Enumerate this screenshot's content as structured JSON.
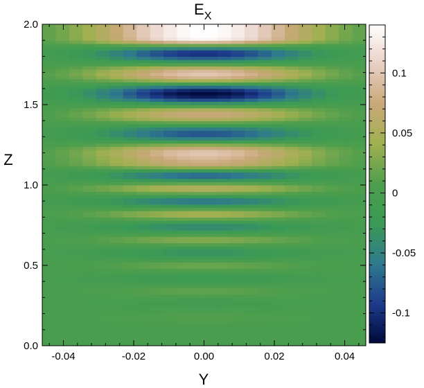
{
  "chart_data": {
    "type": "heatmap",
    "title": "E",
    "title_subscript": "X",
    "xlabel": "Y",
    "ylabel": "Z",
    "xlim": [
      -0.046,
      0.046
    ],
    "ylim": [
      0.0,
      2.0
    ],
    "x_ticks": [
      -0.04,
      -0.02,
      0.0,
      0.02,
      0.04
    ],
    "x_tick_labels": [
      "-0.04",
      "-0.02",
      "0.00",
      "0.02",
      "0.04"
    ],
    "y_ticks": [
      0.0,
      0.5,
      1.0,
      1.5,
      2.0
    ],
    "y_tick_labels": [
      "0.0",
      "0.5",
      "1.0",
      "1.5",
      "2.0"
    ],
    "colorbar": {
      "range": [
        -0.125,
        0.14
      ],
      "ticks": [
        -0.1,
        -0.05,
        0.0,
        0.05,
        0.1
      ],
      "tick_labels": [
        "-0.1",
        "-0.05",
        "0",
        "0.05",
        "0.1"
      ],
      "colormap": [
        "#000a3c",
        "#1e3c8c",
        "#2f7a8c",
        "#3a9a55",
        "#4d9e4d",
        "#a0b050",
        "#c8a878",
        "#e8cfc4",
        "#ffffff"
      ]
    },
    "field": {
      "description_values": "Ex along Z at Y=0 (band extrema)",
      "z": [
        0.1,
        0.18,
        0.26,
        0.34,
        0.42,
        0.5,
        0.58,
        0.66,
        0.74,
        0.82,
        0.9,
        0.98,
        1.06,
        1.14,
        1.2,
        1.32,
        1.44,
        1.57,
        1.69,
        1.82,
        1.92
      ],
      "ex": [
        0.0,
        0.01,
        -0.01,
        0.015,
        -0.02,
        0.02,
        -0.035,
        0.03,
        -0.045,
        0.045,
        -0.06,
        0.055,
        -0.07,
        0.08,
        0.1,
        -0.08,
        0.075,
        -0.125,
        0.1,
        -0.1,
        0.14
      ],
      "y_width": 0.03
    }
  }
}
